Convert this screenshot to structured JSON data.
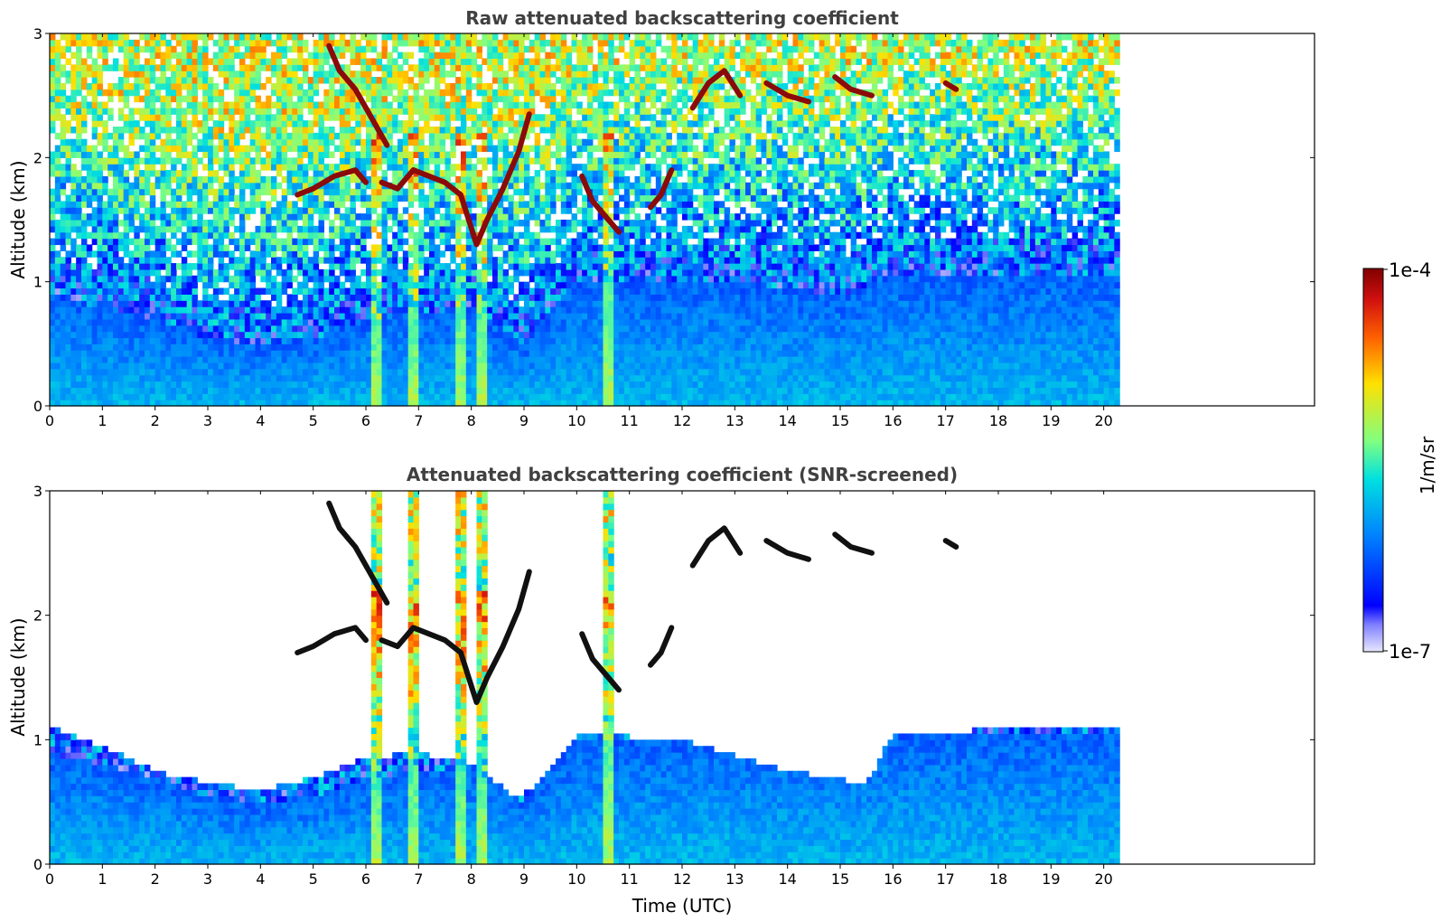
{
  "chart_data": [
    {
      "type": "heatmap",
      "title": "Raw attenuated backscattering coefficient",
      "xlabel": "",
      "ylabel": "Altitude (km)",
      "xlim": [
        0,
        24
      ],
      "ylim": [
        0,
        3
      ],
      "x_ticks": [
        "0",
        "1",
        "2",
        "3",
        "4",
        "5",
        "6",
        "7",
        "8",
        "9",
        "10",
        "11",
        "12",
        "13",
        "14",
        "15",
        "16",
        "17",
        "18",
        "19",
        "20"
      ],
      "y_ticks": [
        "0",
        "1",
        "2",
        "3"
      ],
      "data_extent_hours": [
        0,
        20.3
      ],
      "features": {
        "boundary_layer_top_km": [
          [
            0,
            0.9
          ],
          [
            1,
            0.8
          ],
          [
            2,
            0.7
          ],
          [
            3,
            0.55
          ],
          [
            4,
            0.5
          ],
          [
            5,
            0.55
          ],
          [
            6,
            0.7
          ],
          [
            7,
            0.75
          ],
          [
            8,
            0.8
          ],
          [
            9,
            0.5
          ],
          [
            10,
            1.0
          ],
          [
            11,
            1.0
          ],
          [
            12,
            1.0
          ],
          [
            13,
            1.0
          ],
          [
            14,
            0.95
          ],
          [
            15,
            0.9
          ],
          [
            16,
            1.05
          ],
          [
            17,
            1.05
          ],
          [
            18,
            1.05
          ],
          [
            19,
            1.05
          ],
          [
            20,
            1.05
          ]
        ],
        "cloud_layers": [
          {
            "x": [
              5.3,
              5.5,
              5.8,
              6.0,
              6.2,
              6.4
            ],
            "y": [
              2.9,
              2.7,
              2.55,
              2.4,
              2.25,
              2.1
            ]
          },
          {
            "x": [
              4.7,
              5.0,
              5.4,
              5.8,
              6.0
            ],
            "y": [
              1.7,
              1.75,
              1.85,
              1.9,
              1.8
            ]
          },
          {
            "x": [
              6.3,
              6.6,
              6.9,
              7.2,
              7.5,
              7.8,
              8.1,
              8.3,
              8.6,
              8.9,
              9.1
            ],
            "y": [
              1.8,
              1.75,
              1.9,
              1.85,
              1.8,
              1.7,
              1.3,
              1.5,
              1.75,
              2.05,
              2.35
            ]
          },
          {
            "x": [
              10.1,
              10.3,
              10.6,
              10.8
            ],
            "y": [
              1.85,
              1.65,
              1.5,
              1.4
            ]
          },
          {
            "x": [
              11.4,
              11.6,
              11.8
            ],
            "y": [
              1.6,
              1.7,
              1.9
            ]
          },
          {
            "x": [
              12.2,
              12.5,
              12.8,
              13.1
            ],
            "y": [
              2.4,
              2.6,
              2.7,
              2.5
            ]
          },
          {
            "x": [
              13.6,
              14.0,
              14.4
            ],
            "y": [
              2.6,
              2.5,
              2.45
            ]
          },
          {
            "x": [
              14.9,
              15.2,
              15.6
            ],
            "y": [
              2.65,
              2.55,
              2.5
            ]
          },
          {
            "x": [
              17.0,
              17.2
            ],
            "y": [
              2.6,
              2.55
            ]
          }
        ],
        "aerosol_plumes_hours": [
          6.2,
          6.9,
          7.8,
          8.2,
          10.6
        ]
      }
    },
    {
      "type": "heatmap",
      "title": "Attenuated backscattering coefficient (SNR-screened)",
      "xlabel": "Time (UTC)",
      "ylabel": "Altitude (km)",
      "xlim": [
        0,
        24
      ],
      "ylim": [
        0,
        3
      ],
      "x_ticks": [
        "0",
        "1",
        "2",
        "3",
        "4",
        "5",
        "6",
        "7",
        "8",
        "9",
        "10",
        "11",
        "12",
        "13",
        "14",
        "15",
        "16",
        "17",
        "18",
        "19",
        "20"
      ],
      "y_ticks": [
        "0",
        "1",
        "2",
        "3"
      ],
      "data_extent_hours": [
        0,
        20.3
      ],
      "screened_top_km": [
        [
          0,
          1.1
        ],
        [
          1,
          0.95
        ],
        [
          2,
          0.75
        ],
        [
          3,
          0.65
        ],
        [
          4,
          0.6
        ],
        [
          5,
          0.7
        ],
        [
          6,
          0.85
        ],
        [
          7,
          0.9
        ],
        [
          8,
          0.8
        ],
        [
          8.8,
          0.55
        ],
        [
          9.2,
          0.6
        ],
        [
          10,
          1.05
        ],
        [
          12,
          1.0
        ],
        [
          14,
          0.75
        ],
        [
          15.5,
          0.65
        ],
        [
          16,
          1.05
        ],
        [
          17,
          1.05
        ],
        [
          18,
          1.1
        ],
        [
          19,
          1.1
        ],
        [
          20,
          1.1
        ]
      ]
    }
  ],
  "colorbar": {
    "label": "1/m/sr",
    "max_label": "1e-4",
    "min_label": "1e-7",
    "scale": "log",
    "colormap": [
      "#e8e8ff",
      "#0000ff",
      "#0080ff",
      "#00e0e0",
      "#80ff80",
      "#ffe000",
      "#ff6000",
      "#d01010",
      "#800000"
    ]
  }
}
